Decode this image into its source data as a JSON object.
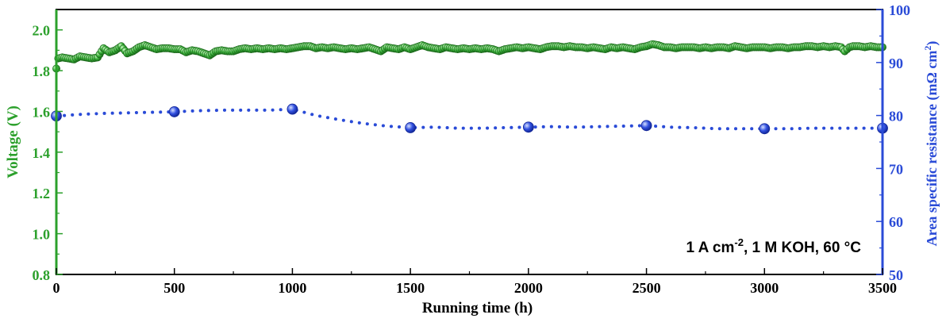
{
  "chart_data": {
    "type": "line",
    "x_axis": {
      "label": "Running time (h)",
      "range": [
        0,
        3500
      ],
      "ticks": [
        0,
        500,
        1000,
        1500,
        2000,
        2500,
        3000,
        3500
      ],
      "tick_labels": [
        "0",
        "500",
        "1000",
        "1500",
        "2000",
        "2500",
        "3000",
        "3500"
      ]
    },
    "y_left": {
      "label": "Voltage (V)",
      "range": [
        0.8,
        2.1
      ],
      "ticks": [
        0.8,
        1.0,
        1.2,
        1.4,
        1.6,
        1.8,
        2.0
      ],
      "tick_labels": [
        "0.8",
        "1.0",
        "1.2",
        "1.4",
        "1.6",
        "1.8",
        "2.0"
      ],
      "color": "#2ca02c"
    },
    "y_right": {
      "label_main": "Area specific resistance (mΩ cm",
      "label_sup": "2",
      "label_end": ")",
      "range": [
        50,
        100
      ],
      "ticks": [
        50,
        60,
        70,
        80,
        90,
        100
      ],
      "tick_labels": [
        "50",
        "60",
        "70",
        "80",
        "90",
        "100"
      ],
      "color": "#2a4bd7"
    },
    "annotation": {
      "part1": "1 A cm",
      "sup": "-2",
      "part2": ", 1 M KOH, 60 °C"
    },
    "grid": false,
    "series": [
      {
        "axis": "left",
        "color": "#2ca02c",
        "marker": "circle",
        "points": [
          [
            0,
            1.81
          ],
          [
            8,
            1.86
          ],
          [
            25,
            1.865
          ],
          [
            50,
            1.86
          ],
          [
            75,
            1.855
          ],
          [
            100,
            1.87
          ],
          [
            125,
            1.865
          ],
          [
            150,
            1.86
          ],
          [
            175,
            1.865
          ],
          [
            200,
            1.91
          ],
          [
            225,
            1.89
          ],
          [
            250,
            1.9
          ],
          [
            275,
            1.92
          ],
          [
            300,
            1.885
          ],
          [
            325,
            1.895
          ],
          [
            350,
            1.915
          ],
          [
            375,
            1.925
          ],
          [
            400,
            1.915
          ],
          [
            425,
            1.905
          ],
          [
            450,
            1.91
          ],
          [
            475,
            1.91
          ],
          [
            500,
            1.905
          ],
          [
            525,
            1.905
          ],
          [
            550,
            1.89
          ],
          [
            575,
            1.9
          ],
          [
            600,
            1.895
          ],
          [
            625,
            1.885
          ],
          [
            650,
            1.875
          ],
          [
            675,
            1.895
          ],
          [
            700,
            1.9
          ],
          [
            725,
            1.895
          ],
          [
            750,
            1.895
          ],
          [
            775,
            1.905
          ],
          [
            800,
            1.91
          ],
          [
            825,
            1.905
          ],
          [
            850,
            1.91
          ],
          [
            875,
            1.905
          ],
          [
            900,
            1.91
          ],
          [
            925,
            1.905
          ],
          [
            950,
            1.91
          ],
          [
            975,
            1.905
          ],
          [
            1000,
            1.91
          ],
          [
            1025,
            1.915
          ],
          [
            1050,
            1.92
          ],
          [
            1075,
            1.92
          ],
          [
            1100,
            1.91
          ],
          [
            1125,
            1.915
          ],
          [
            1150,
            1.91
          ],
          [
            1175,
            1.915
          ],
          [
            1200,
            1.91
          ],
          [
            1225,
            1.905
          ],
          [
            1250,
            1.91
          ],
          [
            1275,
            1.905
          ],
          [
            1300,
            1.91
          ],
          [
            1325,
            1.915
          ],
          [
            1350,
            1.905
          ],
          [
            1375,
            1.895
          ],
          [
            1400,
            1.915
          ],
          [
            1425,
            1.91
          ],
          [
            1450,
            1.905
          ],
          [
            1475,
            1.915
          ],
          [
            1500,
            1.905
          ],
          [
            1525,
            1.915
          ],
          [
            1550,
            1.925
          ],
          [
            1575,
            1.915
          ],
          [
            1600,
            1.91
          ],
          [
            1625,
            1.905
          ],
          [
            1650,
            1.915
          ],
          [
            1675,
            1.91
          ],
          [
            1700,
            1.905
          ],
          [
            1725,
            1.91
          ],
          [
            1750,
            1.905
          ],
          [
            1775,
            1.91
          ],
          [
            1800,
            1.905
          ],
          [
            1825,
            1.91
          ],
          [
            1850,
            1.905
          ],
          [
            1875,
            1.895
          ],
          [
            1900,
            1.905
          ],
          [
            1925,
            1.91
          ],
          [
            1950,
            1.915
          ],
          [
            1975,
            1.91
          ],
          [
            2000,
            1.915
          ],
          [
            2025,
            1.91
          ],
          [
            2050,
            1.905
          ],
          [
            2075,
            1.915
          ],
          [
            2100,
            1.92
          ],
          [
            2125,
            1.92
          ],
          [
            2150,
            1.915
          ],
          [
            2175,
            1.92
          ],
          [
            2200,
            1.915
          ],
          [
            2225,
            1.915
          ],
          [
            2250,
            1.91
          ],
          [
            2275,
            1.915
          ],
          [
            2300,
            1.91
          ],
          [
            2325,
            1.905
          ],
          [
            2350,
            1.915
          ],
          [
            2375,
            1.91
          ],
          [
            2400,
            1.915
          ],
          [
            2425,
            1.91
          ],
          [
            2450,
            1.905
          ],
          [
            2475,
            1.915
          ],
          [
            2500,
            1.92
          ],
          [
            2525,
            1.93
          ],
          [
            2550,
            1.925
          ],
          [
            2575,
            1.915
          ],
          [
            2600,
            1.915
          ],
          [
            2625,
            1.91
          ],
          [
            2650,
            1.915
          ],
          [
            2675,
            1.915
          ],
          [
            2700,
            1.915
          ],
          [
            2725,
            1.91
          ],
          [
            2750,
            1.915
          ],
          [
            2775,
            1.91
          ],
          [
            2800,
            1.915
          ],
          [
            2825,
            1.915
          ],
          [
            2850,
            1.91
          ],
          [
            2875,
            1.92
          ],
          [
            2900,
            1.915
          ],
          [
            2925,
            1.91
          ],
          [
            2950,
            1.915
          ],
          [
            2975,
            1.915
          ],
          [
            3000,
            1.915
          ],
          [
            3025,
            1.91
          ],
          [
            3050,
            1.915
          ],
          [
            3075,
            1.915
          ],
          [
            3100,
            1.91
          ],
          [
            3125,
            1.915
          ],
          [
            3150,
            1.915
          ],
          [
            3175,
            1.92
          ],
          [
            3200,
            1.92
          ],
          [
            3225,
            1.915
          ],
          [
            3250,
            1.92
          ],
          [
            3275,
            1.915
          ],
          [
            3300,
            1.92
          ],
          [
            3325,
            1.915
          ],
          [
            3340,
            1.895
          ],
          [
            3360,
            1.915
          ],
          [
            3375,
            1.92
          ],
          [
            3400,
            1.92
          ],
          [
            3425,
            1.915
          ],
          [
            3450,
            1.92
          ],
          [
            3475,
            1.915
          ],
          [
            3500,
            1.915
          ]
        ]
      },
      {
        "axis": "right",
        "color": "#2a4bd7",
        "marker": "circle",
        "markers_at": [
          0,
          500,
          1000,
          1500,
          2000,
          2500,
          3000,
          3500
        ],
        "points": [
          [
            0,
            79.9
          ],
          [
            100,
            80.2
          ],
          [
            200,
            80.4
          ],
          [
            300,
            80.5
          ],
          [
            400,
            80.6
          ],
          [
            500,
            80.7
          ],
          [
            600,
            80.9
          ],
          [
            700,
            81.0
          ],
          [
            800,
            81.0
          ],
          [
            900,
            81.0
          ],
          [
            1000,
            81.2
          ],
          [
            1100,
            80.0
          ],
          [
            1200,
            79.2
          ],
          [
            1300,
            78.5
          ],
          [
            1400,
            78.0
          ],
          [
            1500,
            77.7
          ],
          [
            1600,
            77.8
          ],
          [
            1700,
            77.6
          ],
          [
            1800,
            77.6
          ],
          [
            1900,
            77.7
          ],
          [
            2000,
            77.8
          ],
          [
            2100,
            77.9
          ],
          [
            2200,
            77.8
          ],
          [
            2300,
            77.9
          ],
          [
            2400,
            78.0
          ],
          [
            2500,
            78.1
          ],
          [
            2600,
            77.8
          ],
          [
            2700,
            77.7
          ],
          [
            2800,
            77.5
          ],
          [
            2900,
            77.5
          ],
          [
            3000,
            77.5
          ],
          [
            3100,
            77.5
          ],
          [
            3200,
            77.6
          ],
          [
            3300,
            77.6
          ],
          [
            3400,
            77.6
          ],
          [
            3500,
            77.6
          ]
        ]
      }
    ]
  }
}
